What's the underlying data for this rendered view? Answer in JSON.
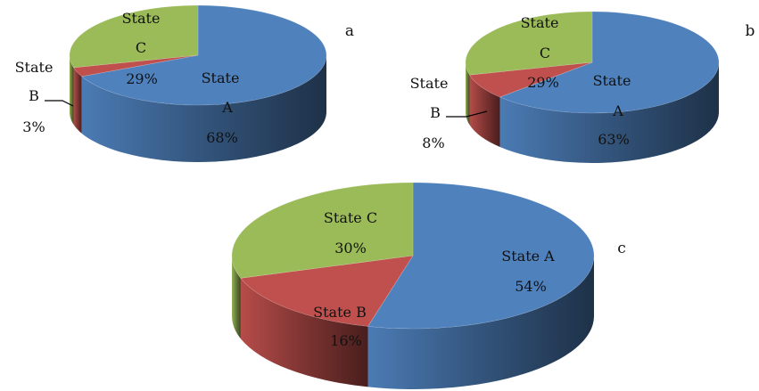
{
  "chart_data": [
    {
      "type": "pie",
      "panel_label": "a",
      "series": [
        {
          "name": "State A",
          "value": 68,
          "label_lines": [
            "State",
            "A",
            "68%"
          ],
          "color": "#4f81bd"
        },
        {
          "name": "State B",
          "value": 3,
          "label_lines": [
            "State",
            "B",
            "3%"
          ],
          "color": "#c0504d"
        },
        {
          "name": "State C",
          "value": 29,
          "label_lines": [
            "State",
            "C",
            "29%"
          ],
          "color": "#9bbb59"
        }
      ]
    },
    {
      "type": "pie",
      "panel_label": "b",
      "series": [
        {
          "name": "State A",
          "value": 63,
          "label_lines": [
            "State",
            "A",
            "63%"
          ],
          "color": "#4f81bd"
        },
        {
          "name": "State B",
          "value": 8,
          "label_lines": [
            "State",
            "B",
            "8%"
          ],
          "color": "#c0504d"
        },
        {
          "name": "State C",
          "value": 29,
          "label_lines": [
            "State",
            "C",
            "29%"
          ],
          "color": "#9bbb59"
        }
      ]
    },
    {
      "type": "pie",
      "panel_label": "c",
      "series": [
        {
          "name": "State A",
          "value": 54,
          "label_lines": [
            "State A",
            "54%"
          ],
          "color": "#4f81bd"
        },
        {
          "name": "State B",
          "value": 16,
          "label_lines": [
            "State B",
            "16%"
          ],
          "color": "#c0504d"
        },
        {
          "name": "State C",
          "value": 30,
          "label_lines": [
            "State C",
            "30%"
          ],
          "color": "#9bbb59"
        }
      ]
    }
  ]
}
